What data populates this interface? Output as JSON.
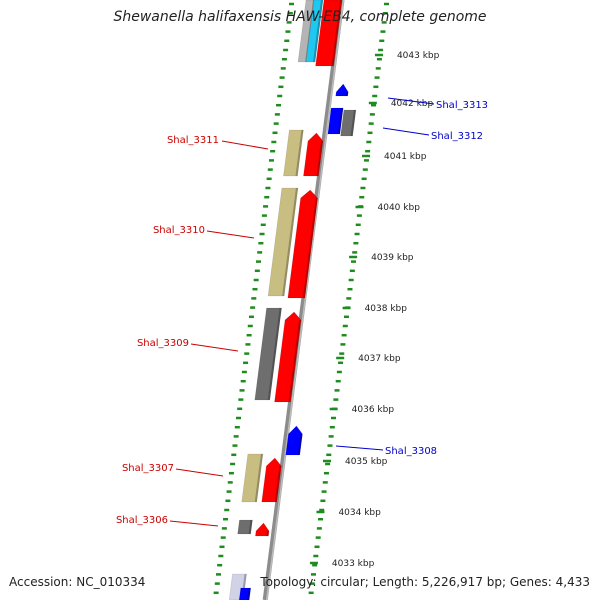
{
  "title": "Shewanella halifaxensis HAW-EB4, complete genome",
  "footer": {
    "accession": "Accession: NC_010334",
    "summary": "Topology: circular; Length: 5,226,917 bp; Genes: 4,433"
  },
  "colors": {
    "ring": "#8c8c8c",
    "tick": "#1e8c1e",
    "plus_gene": "#ff0000",
    "khaki_gene": "#c8be82",
    "gray_gene": "#6e6e6e",
    "minus_gene": "#0000ff",
    "cyan_gene": "#1ec8f0",
    "label_plus": "#cc0000",
    "label_minus": "#0000cc"
  },
  "scale_labels": [
    "4043 kbp",
    "4042 kbp",
    "4041 kbp",
    "4040 kbp",
    "4039 kbp",
    "4038 kbp",
    "4037 kbp",
    "4036 kbp",
    "4035 kbp",
    "4034 kbp",
    "4033 kbp"
  ],
  "gene_labels": [
    {
      "name": "Shal_3313",
      "strand": "minus"
    },
    {
      "name": "Shal_3312",
      "strand": "minus"
    },
    {
      "name": "Shal_3311",
      "strand": "plus"
    },
    {
      "name": "Shal_3310",
      "strand": "plus"
    },
    {
      "name": "Shal_3309",
      "strand": "plus"
    },
    {
      "name": "Shal_3308",
      "strand": "minus"
    },
    {
      "name": "Shal_3307",
      "strand": "plus"
    },
    {
      "name": "Shal_3306",
      "strand": "plus"
    }
  ]
}
